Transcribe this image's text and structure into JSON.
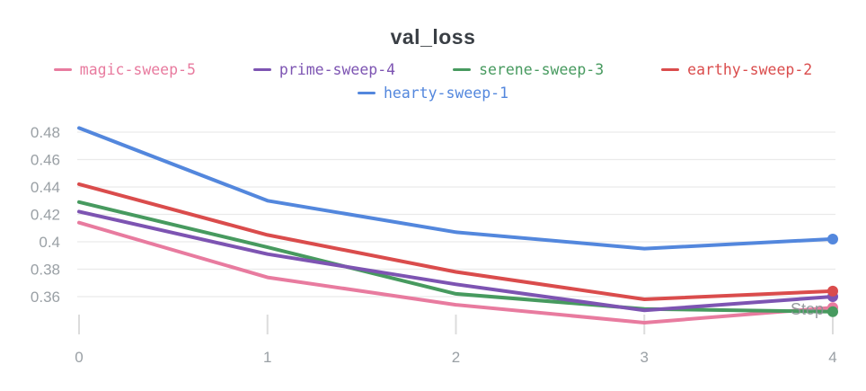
{
  "title": "val_loss",
  "chart_data": {
    "type": "line",
    "title": "val_loss",
    "xlabel": "Step",
    "ylabel": "",
    "x": [
      0,
      1,
      2,
      3,
      4
    ],
    "xticks": [
      "0",
      "1",
      "2",
      "3",
      "4"
    ],
    "yticks": [
      0.36,
      0.38,
      0.4,
      0.42,
      0.44,
      0.46,
      0.48
    ],
    "xlim": [
      0,
      4
    ],
    "ylim": [
      0.3325,
      0.4885
    ],
    "grid": "horizontal-only",
    "legend_position": "top",
    "legend_rows": [
      [
        "magic-sweep-5",
        "prime-sweep-4",
        "serene-sweep-3",
        "earthy-sweep-2"
      ],
      [
        "hearty-sweep-1"
      ]
    ],
    "series": [
      {
        "name": "magic-sweep-5",
        "color": "#E87B9F",
        "values": [
          0.414,
          0.374,
          0.354,
          0.341,
          0.352
        ]
      },
      {
        "name": "prime-sweep-4",
        "color": "#7D54B2",
        "values": [
          0.422,
          0.391,
          0.369,
          0.35,
          0.36
        ]
      },
      {
        "name": "serene-sweep-3",
        "color": "#479A5F",
        "values": [
          0.429,
          0.396,
          0.362,
          0.351,
          0.349
        ]
      },
      {
        "name": "earthy-sweep-2",
        "color": "#DA4C4C",
        "values": [
          0.442,
          0.405,
          0.378,
          0.358,
          0.364
        ]
      },
      {
        "name": "hearty-sweep-1",
        "color": "#5387DD",
        "values": [
          0.483,
          0.43,
          0.407,
          0.395,
          0.402
        ]
      }
    ],
    "end_markers": true,
    "draw_order": [
      0,
      2,
      1,
      3,
      4
    ]
  },
  "style": {
    "grid_color": "#eaeaea",
    "tick_stub_color": "#dcdcdc",
    "axis_label_color": "#9aa0a5",
    "step_label_color": "#8c9196",
    "title_color": "#3a3f45"
  }
}
